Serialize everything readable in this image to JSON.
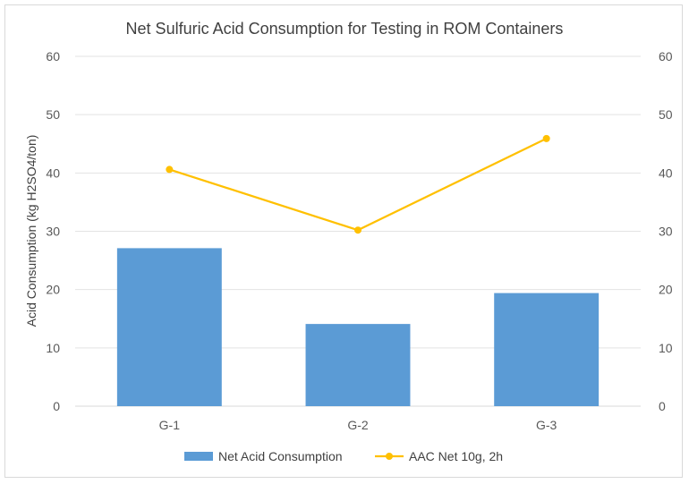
{
  "chart_data": {
    "type": "bar",
    "title": "Net Sulfuric Acid Consumption for Testing in ROM Containers",
    "xlabel": "",
    "ylabel": "Acid Consumption (kg H2SO4/ton)",
    "categories": [
      "G-1",
      "G-2",
      "G-3"
    ],
    "ylim": [
      0,
      60
    ],
    "y2lim": [
      0,
      60
    ],
    "yticks": [
      "0",
      "10",
      "20",
      "30",
      "40",
      "50",
      "60"
    ],
    "grid": true,
    "legend_position": "bottom",
    "series": [
      {
        "name": "Net Acid Consumption",
        "type": "bar",
        "axis": "left",
        "color": "#5b9bd5",
        "values": [
          27.1,
          14.1,
          19.4
        ]
      },
      {
        "name": "AAC Net 10g, 2h",
        "type": "line",
        "axis": "right",
        "color": "#ffc000",
        "marker": "circle",
        "values": [
          40.6,
          30.2,
          45.9
        ]
      }
    ]
  }
}
